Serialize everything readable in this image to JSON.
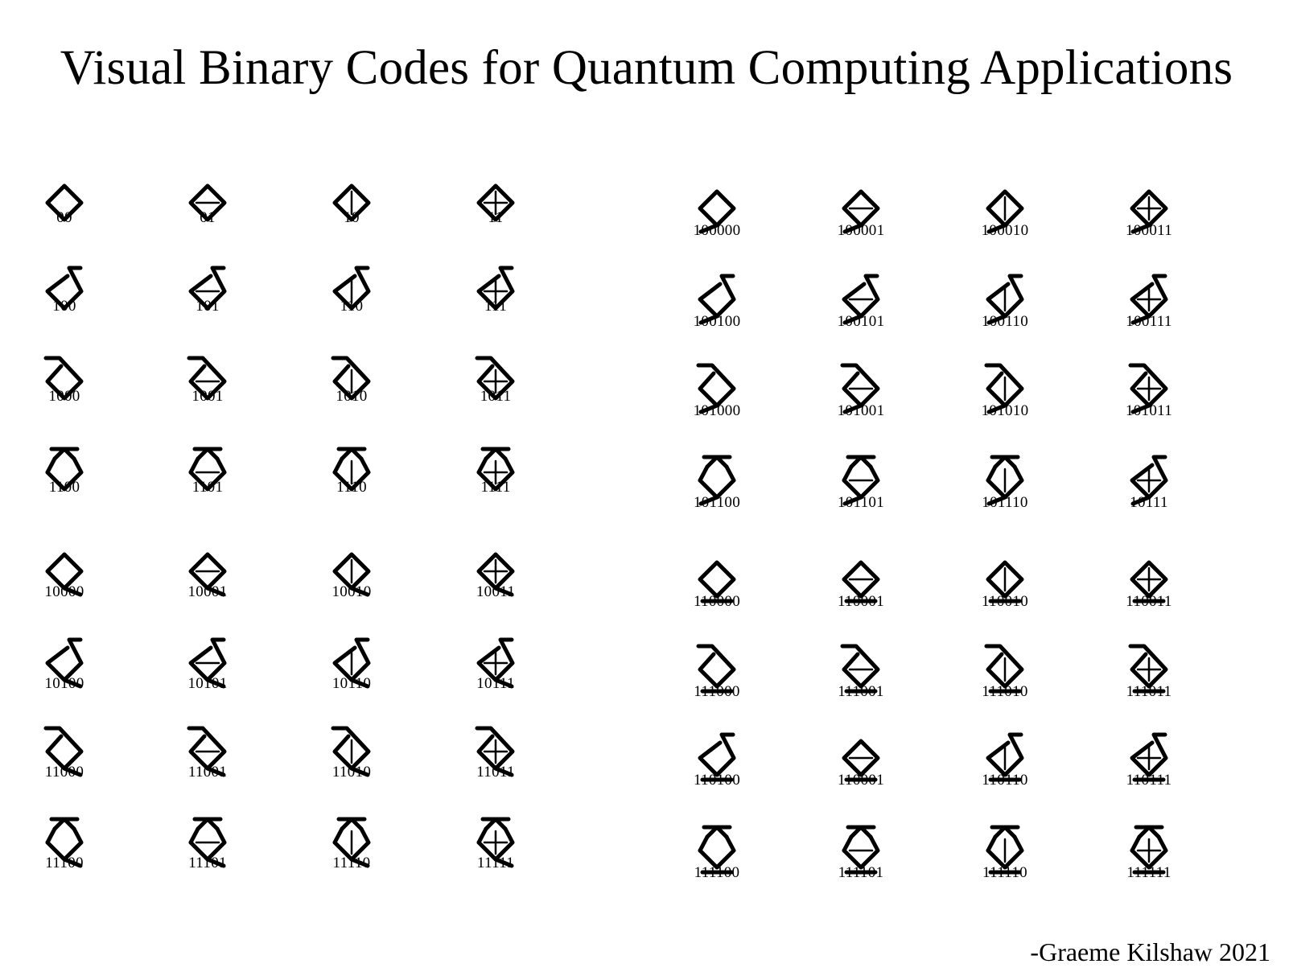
{
  "title": "Visual Binary Codes for Quantum Computing Applications",
  "signature": "-Graeme Kilshaw 2021",
  "colors": {
    "ink": "#000000",
    "background": "#ffffff"
  },
  "left_panel": {
    "codes": [
      [
        "00",
        "01",
        "10",
        "11"
      ],
      [
        "100",
        "101",
        "110",
        "111"
      ],
      [
        "1000",
        "1001",
        "1010",
        "1011"
      ],
      [
        "1100",
        "1101",
        "1110",
        "1111"
      ],
      [
        "10000",
        "10001",
        "10010",
        "10011"
      ],
      [
        "10100",
        "10101",
        "10110",
        "10111"
      ],
      [
        "11000",
        "11001",
        "11010",
        "11011"
      ],
      [
        "11100",
        "11101",
        "11110",
        "11111"
      ]
    ]
  },
  "right_panel": {
    "codes": [
      [
        "100000",
        "100001",
        "100010",
        "100011"
      ],
      [
        "100100",
        "100101",
        "100110",
        "100111"
      ],
      [
        "101000",
        "101001",
        "101010",
        "101011"
      ],
      [
        "101100",
        "101101",
        "101110",
        "10111"
      ],
      [
        "110000",
        "110001",
        "110010",
        "110011"
      ],
      [
        "111000",
        "111001",
        "111010",
        "111011"
      ],
      [
        "110100",
        "110001",
        "110110",
        "110111"
      ],
      [
        "111100",
        "111101",
        "111110",
        "111111"
      ]
    ]
  }
}
